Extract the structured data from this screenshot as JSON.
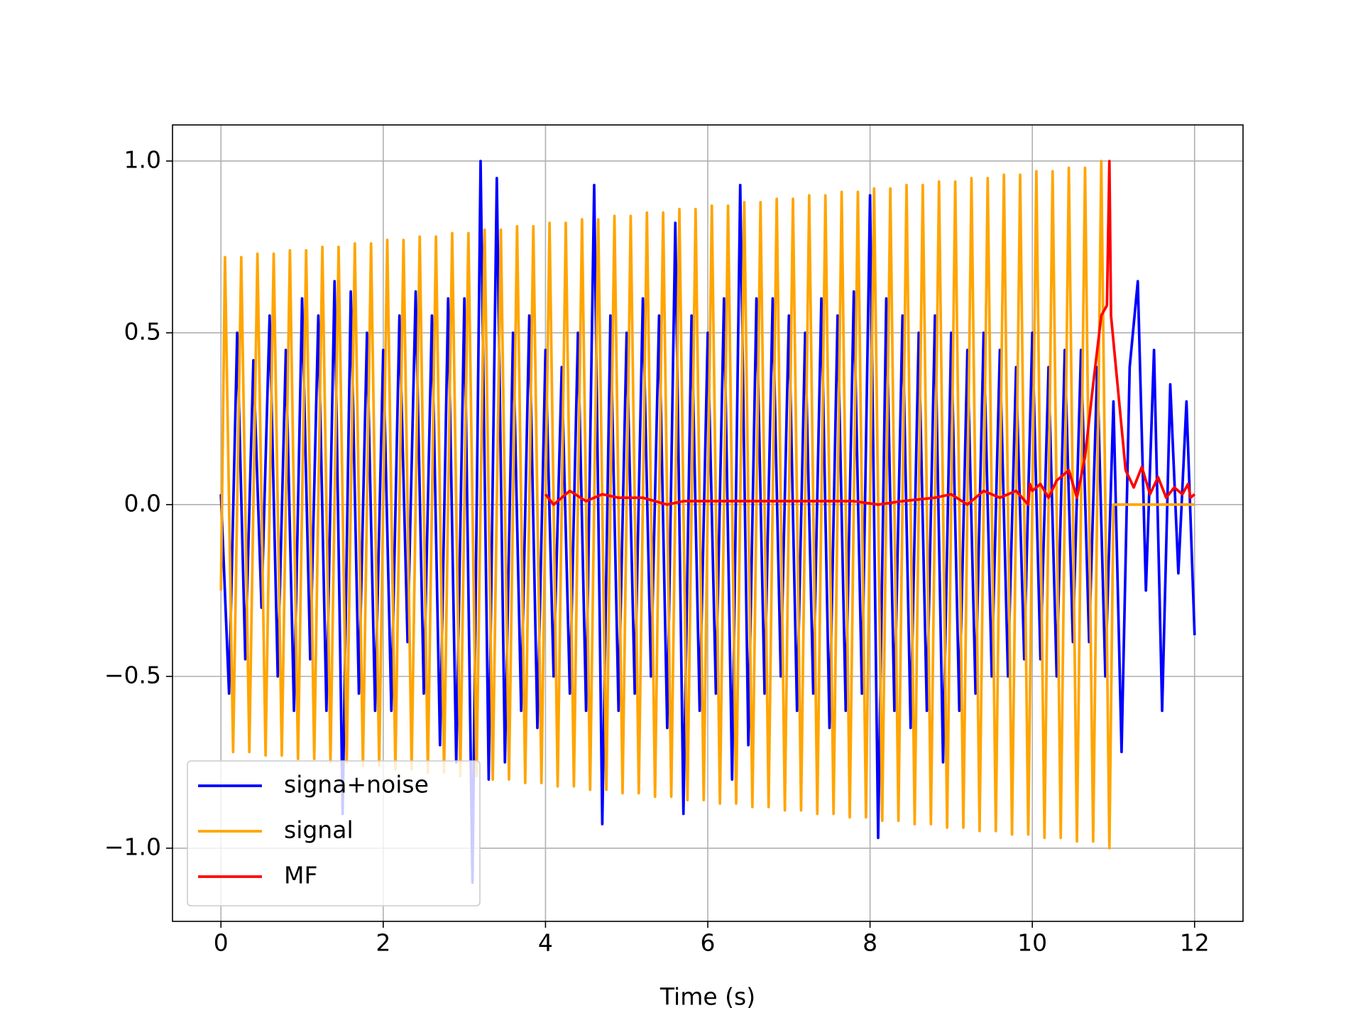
{
  "chart_data": {
    "type": "line",
    "xlabel": "Time (s)",
    "xlim": [
      -0.597,
      12.597
    ],
    "ylim": [
      -1.213,
      1.105
    ],
    "xticks": [
      0,
      2,
      4,
      6,
      8,
      10,
      12
    ],
    "yticks": [
      {
        "value": -1,
        "label": "−1.0"
      },
      {
        "value": -0.5,
        "label": "−0.5"
      },
      {
        "value": 0,
        "label": "0.0"
      },
      {
        "value": 0.5,
        "label": "0.5"
      },
      {
        "value": 1,
        "label": "1.0"
      }
    ],
    "grid": true,
    "legend": "lower left",
    "series": [
      {
        "name": "signa+noise",
        "color": "#0000ff",
        "x": [
          0,
          0.1,
          0.2,
          0.3,
          0.4,
          0.5,
          0.6,
          0.7,
          0.8,
          0.9,
          1,
          1.1,
          1.2,
          1.3,
          1.4,
          1.5,
          1.6,
          1.7,
          1.8,
          1.9,
          2,
          2.1,
          2.2,
          2.3,
          2.4,
          2.5,
          2.6,
          2.7,
          2.8,
          2.9,
          3,
          3.1,
          3.2,
          3.3,
          3.4,
          3.5,
          3.6,
          3.7,
          3.8,
          3.9,
          4,
          4.1,
          4.2,
          4.3,
          4.4,
          4.5,
          4.6,
          4.7,
          4.8,
          4.9,
          5,
          5.1,
          5.2,
          5.3,
          5.4,
          5.5,
          5.6,
          5.7,
          5.8,
          5.9,
          6,
          6.1,
          6.2,
          6.3,
          6.4,
          6.5,
          6.6,
          6.7,
          6.8,
          6.9,
          7,
          7.1,
          7.2,
          7.3,
          7.4,
          7.5,
          7.6,
          7.7,
          7.8,
          7.9,
          8,
          8.1,
          8.2,
          8.3,
          8.4,
          8.5,
          8.6,
          8.7,
          8.8,
          8.9,
          9,
          9.1,
          9.2,
          9.3,
          9.4,
          9.5,
          9.6,
          9.7,
          9.8,
          9.9,
          10,
          10.1,
          10.2,
          10.3,
          10.4,
          10.5,
          10.6,
          10.7,
          10.8,
          10.9,
          11,
          11.1,
          11.2,
          11.3,
          11.4,
          11.5,
          11.6,
          11.7,
          11.8,
          11.9,
          12
        ],
        "values": [
          0.03,
          -0.55,
          0.5,
          -0.45,
          0.42,
          -0.3,
          0.55,
          -0.5,
          0.45,
          -0.6,
          0.6,
          -0.45,
          0.55,
          -0.6,
          0.65,
          -0.9,
          0.62,
          -0.55,
          0.5,
          -0.6,
          0.45,
          -0.6,
          0.55,
          -0.4,
          0.62,
          -0.55,
          0.55,
          -0.7,
          0.6,
          -0.75,
          0.6,
          -1.1,
          1.0,
          -0.8,
          0.95,
          -0.75,
          0.5,
          -0.6,
          0.55,
          -0.65,
          0.45,
          -0.5,
          0.4,
          -0.55,
          0.5,
          -0.6,
          0.93,
          -0.93,
          0.55,
          -0.6,
          0.5,
          -0.55,
          0.6,
          -0.5,
          0.55,
          -0.65,
          0.82,
          -0.9,
          0.55,
          -0.6,
          0.5,
          -0.55,
          0.6,
          -0.8,
          0.93,
          -0.7,
          0.6,
          -0.55,
          0.6,
          -0.5,
          0.55,
          -0.6,
          0.5,
          -0.55,
          0.6,
          -0.65,
          0.55,
          -0.6,
          0.62,
          -0.55,
          0.9,
          -0.97,
          0.6,
          -0.6,
          0.55,
          -0.65,
          0.5,
          -0.6,
          0.55,
          -0.75,
          0.5,
          -0.6,
          0.45,
          -0.55,
          0.5,
          -0.5,
          0.45,
          -0.5,
          0.4,
          -0.45,
          0.5,
          -0.45,
          0.4,
          -0.5,
          0.45,
          -0.4,
          0.45,
          -0.4,
          0.4,
          -0.5,
          0.3,
          -0.72,
          0.4,
          0.65,
          -0.25,
          0.45,
          -0.6,
          0.35,
          -0.2,
          0.3,
          -0.38
        ]
      },
      {
        "name": "signal",
        "color": "#ffa500",
        "x": [
          0,
          0.05,
          0.15,
          0.25,
          0.35,
          0.45,
          0.55,
          0.65,
          0.75,
          0.85,
          0.95,
          1.05,
          1.15,
          1.25,
          1.35,
          1.45,
          1.55,
          1.65,
          1.75,
          1.85,
          1.95,
          2.05,
          2.15,
          2.25,
          2.35,
          2.45,
          2.55,
          2.65,
          2.75,
          2.85,
          2.95,
          3.05,
          3.15,
          3.25,
          3.35,
          3.45,
          3.55,
          3.65,
          3.75,
          3.85,
          3.95,
          4.05,
          4.15,
          4.25,
          4.35,
          4.45,
          4.55,
          4.65,
          4.75,
          4.85,
          4.95,
          5.05,
          5.15,
          5.25,
          5.35,
          5.45,
          5.55,
          5.65,
          5.75,
          5.85,
          5.95,
          6.05,
          6.15,
          6.25,
          6.35,
          6.45,
          6.55,
          6.65,
          6.75,
          6.85,
          6.95,
          7.05,
          7.15,
          7.25,
          7.35,
          7.45,
          7.55,
          7.65,
          7.75,
          7.85,
          7.95,
          8.05,
          8.15,
          8.25,
          8.35,
          8.45,
          8.55,
          8.65,
          8.75,
          8.85,
          8.95,
          9.05,
          9.15,
          9.25,
          9.35,
          9.45,
          9.55,
          9.65,
          9.75,
          9.85,
          9.95,
          10.05,
          10.15,
          10.25,
          10.35,
          10.45,
          10.55,
          10.65,
          10.75,
          10.85,
          10.95,
          11,
          12
        ],
        "values": [
          -0.25,
          0.72,
          -0.72,
          0.72,
          -0.72,
          0.73,
          -0.73,
          0.73,
          -0.73,
          0.74,
          -0.74,
          0.74,
          -0.74,
          0.75,
          -0.75,
          0.75,
          -0.75,
          0.76,
          -0.76,
          0.76,
          -0.76,
          0.77,
          -0.77,
          0.77,
          -0.77,
          0.78,
          -0.78,
          0.78,
          -0.78,
          0.79,
          -0.79,
          0.79,
          -0.79,
          0.8,
          -0.8,
          0.8,
          -0.8,
          0.81,
          -0.81,
          0.81,
          -0.81,
          0.82,
          -0.82,
          0.82,
          -0.82,
          0.83,
          -0.83,
          0.83,
          -0.83,
          0.84,
          -0.84,
          0.84,
          -0.84,
          0.85,
          -0.85,
          0.85,
          -0.85,
          0.86,
          -0.86,
          0.86,
          -0.86,
          0.87,
          -0.87,
          0.87,
          -0.87,
          0.88,
          -0.88,
          0.88,
          -0.88,
          0.89,
          -0.89,
          0.89,
          -0.89,
          0.9,
          -0.9,
          0.9,
          -0.9,
          0.91,
          -0.91,
          0.91,
          -0.91,
          0.92,
          -0.92,
          0.92,
          -0.92,
          0.93,
          -0.93,
          0.93,
          -0.93,
          0.94,
          -0.94,
          0.94,
          -0.94,
          0.95,
          -0.95,
          0.95,
          -0.95,
          0.96,
          -0.96,
          0.96,
          -0.96,
          0.97,
          -0.97,
          0.97,
          -0.97,
          0.98,
          -0.98,
          0.98,
          -0.98,
          1.0,
          -1.0,
          0,
          0
        ]
      },
      {
        "name": "MF",
        "color": "#ff0000",
        "x": [
          4,
          4.1,
          4.3,
          4.5,
          4.7,
          4.9,
          5.2,
          5.5,
          5.7,
          6,
          6.5,
          7,
          7.5,
          7.8,
          8.1,
          8.4,
          8.8,
          9,
          9.2,
          9.4,
          9.6,
          9.8,
          9.95,
          9.97,
          10,
          10.1,
          10.2,
          10.3,
          10.45,
          10.55,
          10.65,
          10.75,
          10.85,
          10.92,
          10.95,
          10.97,
          11.05,
          11.15,
          11.25,
          11.35,
          11.45,
          11.55,
          11.65,
          11.75,
          11.85,
          11.92,
          11.95,
          12
        ],
        "values": [
          0.03,
          0,
          0.04,
          0.01,
          0.03,
          0.02,
          0.02,
          0,
          0.01,
          0.01,
          0.01,
          0.01,
          0.01,
          0.01,
          0,
          0.01,
          0.02,
          0.03,
          0,
          0.04,
          0.02,
          0.04,
          0,
          0.06,
          0.04,
          0.06,
          0.02,
          0.07,
          0.1,
          0.02,
          0.14,
          0.35,
          0.55,
          0.58,
          1.0,
          0.55,
          0.35,
          0.1,
          0.05,
          0.11,
          0.03,
          0.08,
          0.02,
          0.05,
          0.03,
          0.06,
          0.02,
          0.03
        ]
      }
    ]
  }
}
